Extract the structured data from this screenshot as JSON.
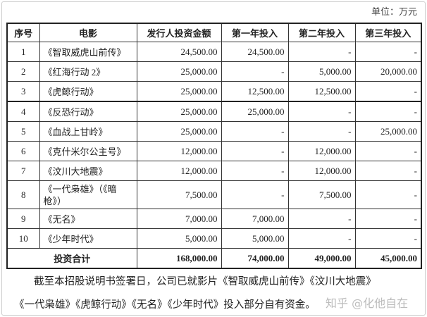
{
  "unit": "单位：万元",
  "headers": [
    "序号",
    "电影",
    "发行人投资金额",
    "第一年投入",
    "第二年投入",
    "第三年投入"
  ],
  "rows": [
    [
      "1",
      "《智取威虎山前传》",
      "24,500.00",
      "24,500.00",
      "-",
      "-"
    ],
    [
      "2",
      "《红海行动 2》",
      "25,000.00",
      "-",
      "5,000.00",
      "20,000.00"
    ],
    [
      "3",
      "《虎鲸行动》",
      "25,000.00",
      "12,500.00",
      "12,500.00",
      "-"
    ],
    [
      "4",
      "《反恐行动》",
      "25,000.00",
      "25,000.00",
      "-",
      "-"
    ],
    [
      "5",
      "《血战上甘岭》",
      "25,000.00",
      "-",
      "-",
      "25,000.00"
    ],
    [
      "6",
      "《克什米尔公主号》",
      "12,000.00",
      "-",
      "12,000.00",
      "-"
    ],
    [
      "7",
      "《汶川大地震》",
      "12,000.00",
      "-",
      "12,000.00",
      "-"
    ],
    [
      "8",
      "《一代枭雄》（《暗枪》）",
      "7,500.00",
      "-",
      "7,500.00",
      "-"
    ],
    [
      "9",
      "《无名》",
      "7,000.00",
      "7,000.00",
      "-",
      "-"
    ],
    [
      "10",
      "《少年时代》",
      "5,000.00",
      "5,000.00",
      "-",
      "-"
    ]
  ],
  "total": {
    "label": "投资合计",
    "values": [
      "168,000.00",
      "74,000.00",
      "49,000.00",
      "45,000.00"
    ]
  },
  "paragraph": [
    "截至本招股说明书签署日，公司已就影片《智取威虎山前传》《汶川大地震》",
    "《一代枭雄》《虎鲸行动》《无名》《少年时代》投入部分自有资金。"
  ],
  "watermark": "知乎 @化他自在"
}
